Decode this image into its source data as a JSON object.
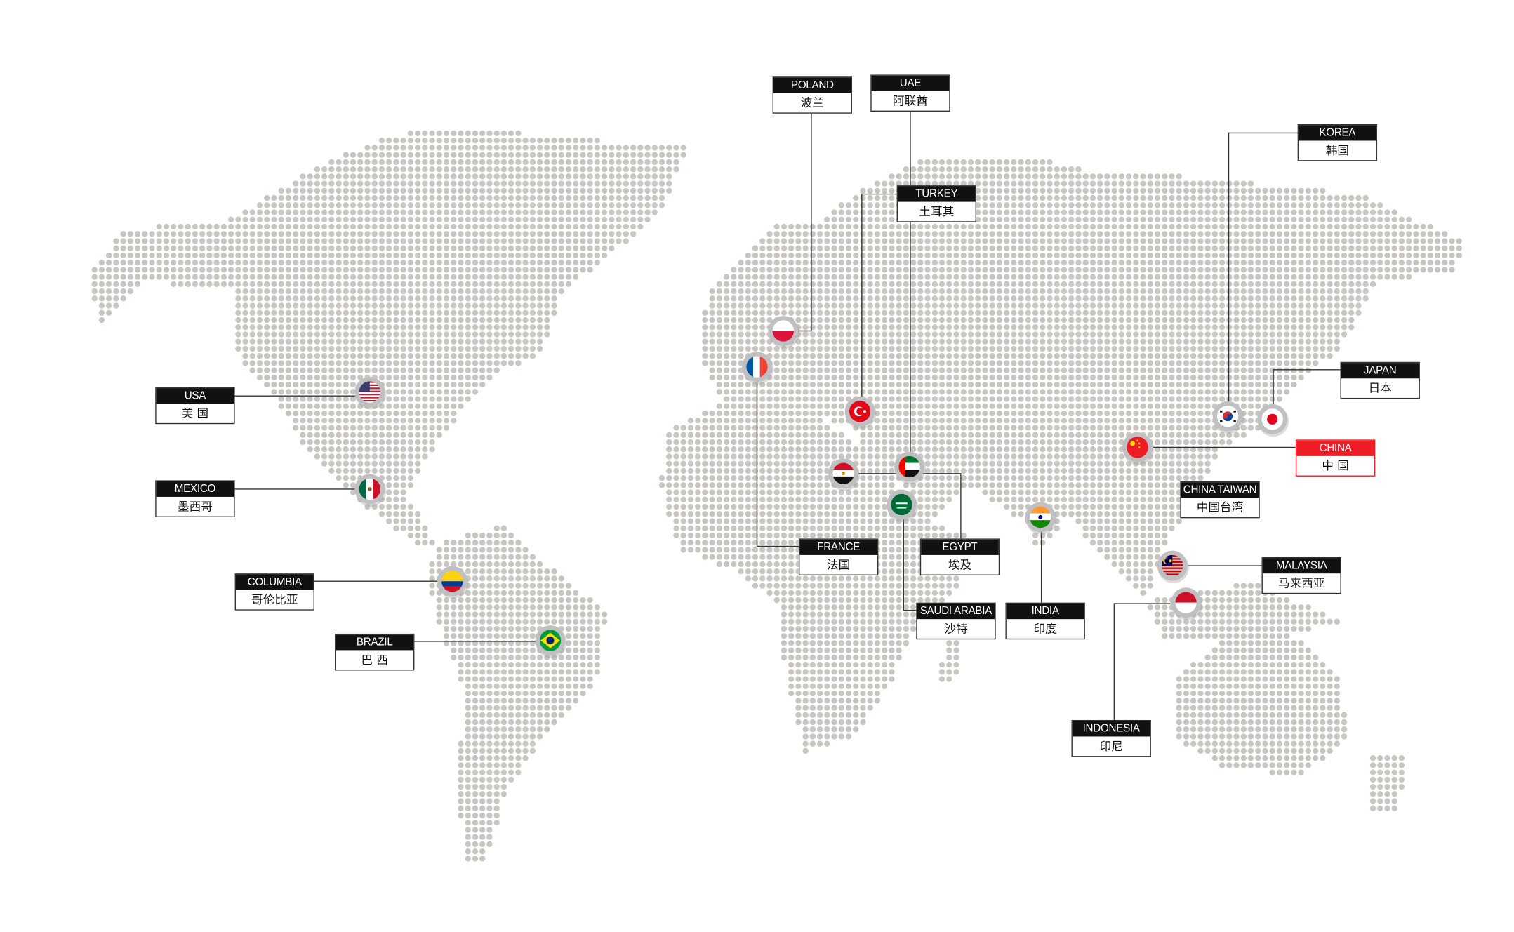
{
  "colors": {
    "dot": "#c9c6c1",
    "label_bg": "#111111",
    "highlight": "#ee1c25",
    "line": "#333333"
  },
  "countries": [
    {
      "en": "POLAND",
      "zh": "波兰",
      "flag": "poland-flag-icon"
    },
    {
      "en": "UAE",
      "zh": "阿联酋",
      "flag": "uae-flag-icon"
    },
    {
      "en": "TURKEY",
      "zh": "土耳其",
      "flag": "turkey-flag-icon"
    },
    {
      "en": "KOREA",
      "zh": "韩国",
      "flag": "korea-flag-icon"
    },
    {
      "en": "JAPAN",
      "zh": "日本",
      "flag": "japan-flag-icon"
    },
    {
      "en": "CHINA",
      "zh": "中 国",
      "flag": "china-flag-icon",
      "highlighted": true
    },
    {
      "en": "CHINA TAIWAN",
      "zh": "中国台湾",
      "flag": ""
    },
    {
      "en": "MALAYSIA",
      "zh": "马来西亚",
      "flag": "malaysia-flag-icon"
    },
    {
      "en": "INDONESIA",
      "zh": "印尼",
      "flag": "indonesia-flag-icon"
    },
    {
      "en": "INDIA",
      "zh": "印度",
      "flag": "india-flag-icon"
    },
    {
      "en": "SAUDI ARABIA",
      "zh": "沙特",
      "flag": "saudi-arabia-flag-icon"
    },
    {
      "en": "EGYPT",
      "zh": "埃及",
      "flag": "egypt-flag-icon"
    },
    {
      "en": "FRANCE",
      "zh": "法国",
      "flag": "france-flag-icon"
    },
    {
      "en": "USA",
      "zh": "美 国",
      "flag": "usa-flag-icon"
    },
    {
      "en": "MEXICO",
      "zh": "墨西哥",
      "flag": "mexico-flag-icon"
    },
    {
      "en": "COLUMBIA",
      "zh": "哥伦比亚",
      "flag": "colombia-flag-icon"
    },
    {
      "en": "BRAZIL",
      "zh": "巴 西",
      "flag": "brazil-flag-icon"
    }
  ]
}
